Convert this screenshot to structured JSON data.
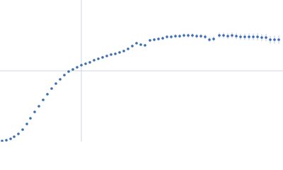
{
  "chart_data": {
    "type": "scatter",
    "x": [
      3,
      9,
      15,
      20,
      26,
      32,
      38,
      43,
      49,
      55,
      61,
      67,
      73,
      79,
      85,
      91,
      97,
      103,
      109,
      115,
      121,
      127,
      133,
      139,
      145,
      151,
      157,
      163,
      169,
      175,
      181,
      187,
      193,
      199,
      205,
      212,
      218,
      224,
      230,
      236,
      242,
      248,
      254,
      260,
      266,
      272,
      278,
      284,
      290,
      296,
      302,
      310,
      316,
      322,
      328,
      334,
      340,
      346,
      352,
      358,
      364,
      370,
      376,
      382,
      388,
      394
    ],
    "series": [
      {
        "color": "#3b6db3",
        "error_color": "#b9c9e2",
        "values": [
          1,
          2,
          4,
          7,
          11,
          17,
          25,
          33,
          42,
          50,
          59,
          67,
          75,
          82,
          88,
          94,
          99,
          102,
          105,
          108,
          110,
          112,
          115,
          117,
          119,
          121,
          123,
          124,
          126,
          128,
          131,
          135,
          139,
          137,
          136,
          143,
          144,
          145,
          146,
          148,
          148,
          149,
          149,
          150,
          150,
          150,
          149,
          149,
          148,
          144,
          145,
          150,
          150,
          149,
          150,
          149,
          148,
          148,
          148,
          148,
          148,
          147,
          147,
          144,
          144,
          144
        ],
        "errors": [
          0.5,
          0.5,
          0.5,
          0.5,
          0.5,
          0.5,
          0.6,
          0.6,
          0.6,
          0.6,
          0.7,
          0.7,
          0.7,
          0.8,
          0.8,
          0.8,
          0.9,
          0.9,
          1,
          1,
          1,
          1.1,
          1.1,
          1.2,
          1.2,
          1.3,
          1.3,
          1.4,
          1.5,
          1.5,
          1.6,
          1.7,
          1.8,
          1.9,
          2,
          2.1,
          2.2,
          2.3,
          2.4,
          2.5,
          2.6,
          2.7,
          2.8,
          2.9,
          3,
          3.1,
          3.2,
          3.3,
          3.4,
          3.5,
          3.6,
          3.8,
          3.9,
          4,
          4.1,
          4.3,
          4.4,
          4.5,
          4.7,
          4.8,
          5,
          5.1,
          5.3,
          5.4,
          5.6,
          5.8
        ]
      }
    ],
    "xlim": [
      0,
      400
    ],
    "ylim": [
      0,
      200
    ],
    "xticks": [
      115
    ],
    "yticks": [
      100
    ],
    "grid": true,
    "tick_labels": false
  }
}
